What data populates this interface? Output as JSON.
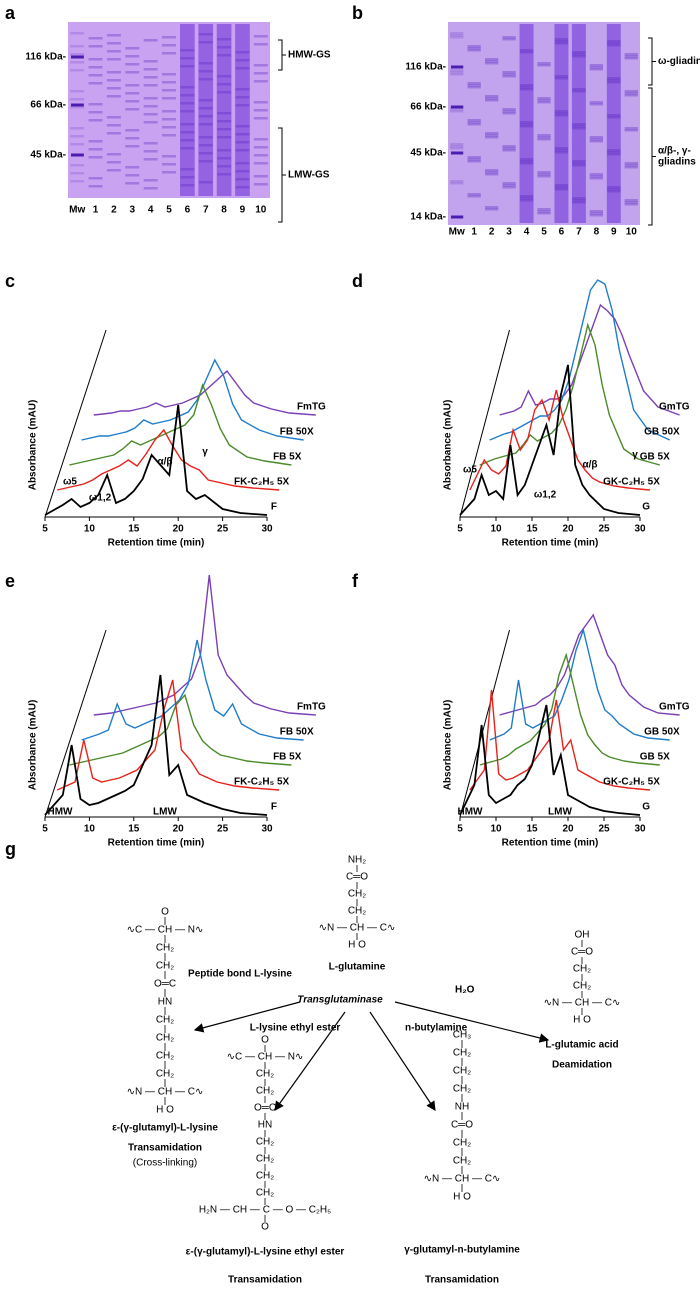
{
  "gels": [
    {
      "label": "a",
      "markers": [
        "116 kDa-",
        "66 kDa-",
        "45 kDa-"
      ],
      "lanes": [
        "Mw",
        "1",
        "2",
        "3",
        "4",
        "5",
        "6",
        "7",
        "8",
        "9",
        "10"
      ],
      "brackets": [
        {
          "lines": [
            "HMW-GS"
          ]
        },
        {
          "lines": [
            "LMW-GS"
          ]
        }
      ]
    },
    {
      "label": "b",
      "markers": [
        "116 kDa-",
        "66 kDa-",
        "45 kDa-",
        "14 kDa-"
      ],
      "lanes": [
        "Mw",
        "1",
        "2",
        "3",
        "4",
        "5",
        "6",
        "7",
        "8",
        "9",
        "10"
      ],
      "brackets": [
        {
          "lines": [
            "ω-gliadins"
          ]
        },
        {
          "lines": [
            "α/β-, γ-",
            "gliadins"
          ]
        }
      ]
    }
  ],
  "chart_data": [
    {
      "type": "line",
      "label": "c",
      "xlabel": "Retention time (min)",
      "ylabel": "Absorbance (mAU)",
      "xlim": [
        5,
        30
      ],
      "xticks": [
        5,
        10,
        15,
        20,
        25,
        30
      ],
      "x": [
        5,
        7,
        8,
        9,
        10,
        11,
        12,
        13,
        14,
        15,
        16,
        17,
        18,
        19,
        20,
        21,
        22,
        23,
        25,
        27,
        30
      ],
      "series": [
        {
          "name": "F",
          "color": "#000000",
          "values": [
            0,
            5,
            8,
            4,
            6,
            10,
            20,
            6,
            8,
            12,
            18,
            30,
            25,
            20,
            55,
            12,
            8,
            10,
            3,
            1,
            0
          ]
        },
        {
          "name": "FK-C₂H₅ 5X",
          "color": "#e8211b",
          "values": [
            0,
            2,
            3,
            5,
            8,
            10,
            12,
            15,
            12,
            18,
            25,
            30,
            22,
            15,
            12,
            10,
            5,
            4,
            2,
            1,
            0
          ]
        },
        {
          "name": "FB 5X",
          "color": "#4a8a2a",
          "values": [
            0,
            2,
            3,
            4,
            5,
            8,
            12,
            10,
            12,
            14,
            16,
            18,
            20,
            25,
            40,
            30,
            18,
            10,
            4,
            2,
            0
          ]
        },
        {
          "name": "FB 50X",
          "color": "#1f7ccc",
          "values": [
            0,
            2,
            2,
            3,
            4,
            6,
            10,
            8,
            9,
            10,
            12,
            14,
            20,
            30,
            40,
            32,
            18,
            10,
            5,
            2,
            0
          ]
        },
        {
          "name": "FmTG",
          "color": "#7b3fb5",
          "values": [
            0,
            1,
            2,
            2,
            3,
            4,
            6,
            4,
            5,
            6,
            8,
            10,
            14,
            18,
            22,
            16,
            10,
            6,
            3,
            1,
            0
          ]
        }
      ],
      "annotations": [
        "ω5",
        "ω1,2",
        "α/β",
        "γ"
      ]
    },
    {
      "type": "line",
      "label": "d",
      "xlabel": "Retention time (min)",
      "ylabel": "Absorbance (mAU)",
      "xlim": [
        5,
        30
      ],
      "xticks": [
        5,
        10,
        15,
        20,
        25,
        30
      ],
      "x": [
        5,
        7,
        8,
        9,
        10,
        11,
        12,
        13,
        14,
        15,
        16,
        17,
        18,
        19,
        20,
        21,
        22,
        23,
        25,
        27,
        30
      ],
      "series": [
        {
          "name": "G",
          "color": "#000000",
          "values": [
            0,
            8,
            20,
            10,
            12,
            8,
            35,
            10,
            15,
            25,
            35,
            45,
            30,
            60,
            75,
            25,
            15,
            10,
            3,
            1,
            0
          ]
        },
        {
          "name": "GK-C₂H₅ 5X",
          "color": "#e8211b",
          "values": [
            0,
            15,
            10,
            8,
            12,
            30,
            20,
            25,
            40,
            45,
            35,
            50,
            35,
            25,
            15,
            10,
            6,
            4,
            2,
            1,
            0
          ]
        },
        {
          "name": "GB 5X",
          "color": "#4a8a2a",
          "values": [
            0,
            3,
            4,
            5,
            6,
            10,
            15,
            12,
            14,
            16,
            20,
            28,
            40,
            55,
            70,
            60,
            40,
            25,
            8,
            3,
            0
          ]
        },
        {
          "name": "GB 50X",
          "color": "#1f7ccc",
          "values": [
            0,
            3,
            4,
            6,
            8,
            10,
            12,
            12,
            15,
            20,
            30,
            45,
            60,
            75,
            80,
            78,
            65,
            45,
            15,
            5,
            0
          ]
        },
        {
          "name": "GmTG",
          "color": "#7b3fb5",
          "values": [
            0,
            2,
            4,
            12,
            5,
            6,
            8,
            8,
            10,
            15,
            25,
            35,
            45,
            55,
            52,
            48,
            40,
            30,
            12,
            4,
            0
          ]
        }
      ],
      "annotations": [
        "ω5",
        "ω1,2",
        "α/β",
        "γ"
      ]
    },
    {
      "type": "line",
      "label": "e",
      "xlabel": "Retention time (min)",
      "ylabel": "Absorbance (mAU)",
      "xlim": [
        5,
        30
      ],
      "xticks": [
        5,
        10,
        15,
        20,
        25,
        30
      ],
      "x": [
        5,
        7,
        8,
        9,
        10,
        11,
        12,
        13,
        14,
        15,
        16,
        17,
        18,
        19,
        20,
        21,
        22,
        23,
        25,
        27,
        30
      ],
      "series": [
        {
          "name": "F",
          "color": "#000000",
          "values": [
            0,
            10,
            35,
            8,
            5,
            6,
            8,
            10,
            12,
            15,
            25,
            35,
            70,
            20,
            25,
            10,
            8,
            6,
            3,
            1,
            0
          ]
        },
        {
          "name": "FK-C₂H₅ 5X",
          "color": "#e8211b",
          "values": [
            0,
            4,
            25,
            6,
            4,
            5,
            6,
            8,
            10,
            15,
            20,
            40,
            55,
            20,
            15,
            8,
            6,
            4,
            2,
            1,
            0
          ]
        },
        {
          "name": "FB 5X",
          "color": "#4a8a2a",
          "values": [
            0,
            2,
            3,
            4,
            5,
            6,
            8,
            10,
            12,
            14,
            18,
            30,
            35,
            20,
            12,
            8,
            5,
            4,
            2,
            1,
            0
          ]
        },
        {
          "name": "FB 50X",
          "color": "#1f7ccc",
          "values": [
            0,
            3,
            5,
            18,
            8,
            6,
            8,
            10,
            12,
            16,
            20,
            28,
            50,
            30,
            15,
            12,
            18,
            8,
            3,
            1,
            0
          ]
        },
        {
          "name": "FmTG",
          "color": "#7b3fb5",
          "values": [
            0,
            1,
            2,
            3,
            4,
            5,
            6,
            8,
            10,
            14,
            18,
            30,
            70,
            30,
            20,
            15,
            10,
            6,
            3,
            1,
            0
          ]
        }
      ],
      "annotations": [
        "HMW",
        "LMW"
      ]
    },
    {
      "type": "line",
      "label": "f",
      "xlabel": "Retention time (min)",
      "ylabel": "Absorbance (mAU)",
      "xlim": [
        5,
        30
      ],
      "xticks": [
        5,
        10,
        15,
        20,
        25,
        30
      ],
      "x": [
        5,
        7,
        8,
        9,
        10,
        11,
        12,
        13,
        14,
        15,
        16,
        17,
        18,
        19,
        20,
        21,
        22,
        23,
        25,
        27,
        30
      ],
      "series": [
        {
          "name": "G",
          "color": "#000000",
          "values": [
            0,
            15,
            45,
            10,
            6,
            8,
            10,
            15,
            18,
            25,
            40,
            55,
            20,
            30,
            10,
            8,
            6,
            4,
            2,
            1,
            0
          ]
        },
        {
          "name": "GK-C₂H₅ 5X",
          "color": "#e8211b",
          "values": [
            0,
            10,
            50,
            8,
            5,
            6,
            8,
            10,
            15,
            20,
            25,
            45,
            20,
            25,
            10,
            8,
            6,
            4,
            2,
            1,
            0
          ]
        },
        {
          "name": "GB 5X",
          "color": "#4a8a2a",
          "values": [
            0,
            2,
            3,
            5,
            8,
            10,
            12,
            16,
            20,
            28,
            45,
            55,
            40,
            25,
            15,
            10,
            6,
            4,
            2,
            1,
            0
          ]
        },
        {
          "name": "GB 50X",
          "color": "#1f7ccc",
          "values": [
            0,
            3,
            6,
            30,
            8,
            6,
            8,
            10,
            12,
            20,
            30,
            45,
            55,
            40,
            25,
            15,
            12,
            8,
            3,
            1,
            0
          ]
        },
        {
          "name": "GmTG",
          "color": "#7b3fb5",
          "values": [
            0,
            2,
            3,
            4,
            5,
            8,
            10,
            14,
            20,
            30,
            40,
            45,
            50,
            40,
            30,
            25,
            15,
            10,
            4,
            1,
            0
          ]
        }
      ],
      "annotations": [
        "HMW",
        "LMW"
      ]
    }
  ],
  "scheme": {
    "label": "g",
    "enzyme": "Transglutaminase",
    "reagents": [
      "Peptide bond L-lysine",
      "L-lysine ethyl ester",
      "n-butylamine",
      "H₂O"
    ],
    "center": {
      "rows": [
        "NH₂",
        "C═O",
        "CH₂",
        "CH₂",
        "∿N — CH — C∿",
        "H          O"
      ],
      "name": "L-glutamine"
    },
    "products": [
      {
        "rows": [
          "O",
          "∿C — CH — N∿",
          "CH₂",
          "CH₂",
          "O═C",
          "HN",
          "CH₂",
          "CH₂",
          "CH₂",
          "CH₂",
          "∿N — CH — C∿",
          "H          O"
        ],
        "name": "ε-(γ-glutamyl)-L-lysine",
        "reaction": "Transamidation",
        "note": "(Cross-linking)"
      },
      {
        "rows": [
          "O",
          "∿C — CH — N∿",
          "CH₂",
          "CH₂",
          "O═C",
          "HN",
          "CH₂",
          "CH₂",
          "CH₂",
          "CH₂",
          "H₂N — CH — C — O — C₂H₅",
          "O"
        ],
        "name": "ε-(γ-glutamyl)-L-lysine  ethyl ester",
        "reaction": "Transamidation"
      },
      {
        "rows": [
          "CH₃",
          "CH₂",
          "CH₂",
          "CH₂",
          "NH",
          "C═O",
          "CH₂",
          "CH₂",
          "∿N — CH — C∿",
          "H          O"
        ],
        "name": "γ-glutamyl-n-butylamine",
        "reaction": "Transamidation"
      },
      {
        "rows": [
          "OH",
          "C═O",
          "CH₂",
          "CH₂",
          "∿N — CH — C∿",
          "H          O"
        ],
        "name": "L-glutamic acid",
        "reaction": "Deamidation"
      }
    ]
  }
}
